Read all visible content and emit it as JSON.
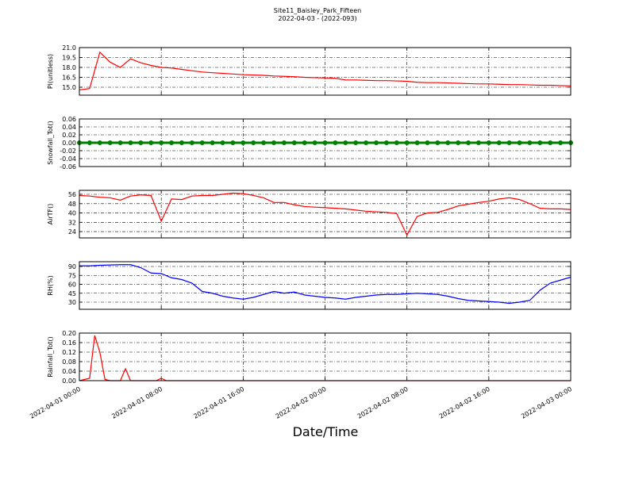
{
  "title": "Site11_Baisley_Park_Fifteen",
  "subtitle": "2022-04-03 - (2022-093)",
  "xlabel": "Date/Time",
  "xlim": [
    "2022-04-01 00:00",
    "2022-04-03 00:00"
  ],
  "xticks": [
    "2022-04-01 00:00",
    "2022-04-01 08:00",
    "2022-04-01 16:00",
    "2022-04-02 00:00",
    "2022-04-02 08:00",
    "2022-04-02 16:00",
    "2022-04-03 00:00"
  ],
  "grid": true,
  "chart_data": [
    {
      "type": "line",
      "ylabel": "Pl(unitless)",
      "ylim": [
        13.8,
        21
      ],
      "yticks": [
        {
          "value": 15,
          "label": "15.0"
        },
        {
          "value": 16.5,
          "label": "16.5"
        },
        {
          "value": 18,
          "label": "18.0"
        },
        {
          "value": 19.5,
          "label": "19.5"
        },
        {
          "value": 21,
          "label": "21.0"
        }
      ],
      "x": [
        "2022-04-01 00:00",
        "2022-04-01 01:00",
        "2022-04-01 02:00",
        "2022-04-01 03:00",
        "2022-04-01 04:00",
        "2022-04-01 05:00",
        "2022-04-01 06:00",
        "2022-04-01 07:00",
        "2022-04-01 08:00",
        "2022-04-01 09:00",
        "2022-04-01 10:00",
        "2022-04-01 11:00",
        "2022-04-01 12:00",
        "2022-04-01 13:00",
        "2022-04-01 14:00",
        "2022-04-01 15:00",
        "2022-04-01 16:00",
        "2022-04-01 17:00",
        "2022-04-01 18:00",
        "2022-04-01 19:00",
        "2022-04-01 20:00",
        "2022-04-01 21:00",
        "2022-04-01 22:00",
        "2022-04-01 23:00",
        "2022-04-02 00:00",
        "2022-04-02 01:00",
        "2022-04-02 02:00",
        "2022-04-02 03:00",
        "2022-04-02 04:00",
        "2022-04-02 05:00",
        "2022-04-02 06:00",
        "2022-04-02 07:00",
        "2022-04-02 08:00",
        "2022-04-02 09:00",
        "2022-04-02 10:00",
        "2022-04-02 11:00",
        "2022-04-02 12:00",
        "2022-04-02 13:00",
        "2022-04-02 14:00",
        "2022-04-02 15:00",
        "2022-04-02 16:00",
        "2022-04-02 17:00",
        "2022-04-02 18:00",
        "2022-04-02 19:00",
        "2022-04-02 20:00",
        "2022-04-02 21:00",
        "2022-04-02 22:00",
        "2022-04-02 23:00",
        "2022-04-03 00:00"
      ],
      "series": [
        {
          "color": "#ff0000",
          "marker": false,
          "values": [
            14.6,
            14.8,
            20.3,
            18.8,
            18.0,
            19.3,
            18.7,
            18.3,
            18.0,
            17.9,
            17.7,
            17.5,
            17.3,
            17.2,
            17.1,
            17.0,
            16.9,
            16.85,
            16.8,
            16.7,
            16.65,
            16.6,
            16.5,
            16.45,
            16.4,
            16.35,
            16.1,
            16.1,
            16.05,
            16.0,
            16.0,
            15.95,
            15.9,
            15.75,
            15.7,
            15.7,
            15.65,
            15.6,
            15.55,
            15.5,
            15.5,
            15.45,
            15.4,
            15.4,
            15.35,
            15.3,
            15.3,
            15.25,
            15.2
          ]
        }
      ]
    },
    {
      "type": "line",
      "ylabel": "Snowfall_Tot()",
      "ylim": [
        -0.06,
        0.06
      ],
      "yticks": [
        -0.06,
        -0.04,
        -0.02,
        {
          "value": 0,
          "label": "0.00"
        },
        0.02,
        0.04,
        0.06
      ],
      "x": [
        "2022-04-01 00:00",
        "2022-04-01 01:00",
        "2022-04-01 02:00",
        "2022-04-01 03:00",
        "2022-04-01 04:00",
        "2022-04-01 05:00",
        "2022-04-01 06:00",
        "2022-04-01 07:00",
        "2022-04-01 08:00",
        "2022-04-01 09:00",
        "2022-04-01 10:00",
        "2022-04-01 11:00",
        "2022-04-01 12:00",
        "2022-04-01 13:00",
        "2022-04-01 14:00",
        "2022-04-01 15:00",
        "2022-04-01 16:00",
        "2022-04-01 17:00",
        "2022-04-01 18:00",
        "2022-04-01 19:00",
        "2022-04-01 20:00",
        "2022-04-01 21:00",
        "2022-04-01 22:00",
        "2022-04-01 23:00",
        "2022-04-02 00:00",
        "2022-04-02 01:00",
        "2022-04-02 02:00",
        "2022-04-02 03:00",
        "2022-04-02 04:00",
        "2022-04-02 05:00",
        "2022-04-02 06:00",
        "2022-04-02 07:00",
        "2022-04-02 08:00",
        "2022-04-02 09:00",
        "2022-04-02 10:00",
        "2022-04-02 11:00",
        "2022-04-02 12:00",
        "2022-04-02 13:00",
        "2022-04-02 14:00",
        "2022-04-02 15:00",
        "2022-04-02 16:00",
        "2022-04-02 17:00",
        "2022-04-02 18:00",
        "2022-04-02 19:00",
        "2022-04-02 20:00",
        "2022-04-02 21:00",
        "2022-04-02 22:00",
        "2022-04-02 23:00",
        "2022-04-03 00:00"
      ],
      "series": [
        {
          "color": "#008000",
          "marker": true,
          "values": [
            0,
            0,
            0,
            0,
            0,
            0,
            0,
            0,
            0,
            0,
            0,
            0,
            0,
            0,
            0,
            0,
            0,
            0,
            0,
            0,
            0,
            0,
            0,
            0,
            0,
            0,
            0,
            0,
            0,
            0,
            0,
            0,
            0,
            0,
            0,
            0,
            0,
            0,
            0,
            0,
            0,
            0,
            0,
            0,
            0,
            0,
            0,
            0,
            0
          ]
        }
      ]
    },
    {
      "type": "line",
      "ylabel": "AirTF()",
      "ylim": [
        18.6,
        59.4
      ],
      "yticks": [
        24,
        32,
        40,
        48,
        56
      ],
      "x": [
        "2022-04-01 00:00",
        "2022-04-01 01:00",
        "2022-04-01 02:00",
        "2022-04-01 03:00",
        "2022-04-01 04:00",
        "2022-04-01 05:00",
        "2022-04-01 06:00",
        "2022-04-01 07:00",
        "2022-04-01 08:00",
        "2022-04-01 09:00",
        "2022-04-01 10:00",
        "2022-04-01 11:00",
        "2022-04-01 12:00",
        "2022-04-01 13:00",
        "2022-04-01 14:00",
        "2022-04-01 15:00",
        "2022-04-01 16:00",
        "2022-04-01 17:00",
        "2022-04-01 18:00",
        "2022-04-01 19:00",
        "2022-04-01 20:00",
        "2022-04-01 21:00",
        "2022-04-01 22:00",
        "2022-04-01 23:00",
        "2022-04-02 00:00",
        "2022-04-02 01:00",
        "2022-04-02 02:00",
        "2022-04-02 03:00",
        "2022-04-02 04:00",
        "2022-04-02 05:00",
        "2022-04-02 06:00",
        "2022-04-02 07:00",
        "2022-04-02 08:00",
        "2022-04-02 09:00",
        "2022-04-02 10:00",
        "2022-04-02 11:00",
        "2022-04-02 12:00",
        "2022-04-02 13:00",
        "2022-04-02 14:00",
        "2022-04-02 15:00",
        "2022-04-02 16:00",
        "2022-04-02 17:00",
        "2022-04-02 18:00",
        "2022-04-02 19:00",
        "2022-04-02 20:00",
        "2022-04-02 21:00",
        "2022-04-02 22:00",
        "2022-04-02 23:00",
        "2022-04-03 00:00"
      ],
      "series": [
        {
          "color": "#ff0000",
          "marker": false,
          "values": [
            55,
            54.5,
            53.5,
            53,
            51,
            54.5,
            55.5,
            55,
            33,
            52,
            51.5,
            54.5,
            55,
            55,
            56,
            57,
            56.5,
            55,
            53,
            49,
            49,
            47,
            45.5,
            45,
            44.5,
            44,
            43.5,
            42.5,
            41.5,
            41,
            40.5,
            39.5,
            21,
            37,
            40,
            40.5,
            43,
            46,
            47.5,
            49,
            50,
            52,
            53,
            51.5,
            48,
            44,
            43.5,
            43.5,
            43
          ]
        }
      ]
    },
    {
      "type": "line",
      "ylabel": "RH(%)",
      "ylim": [
        18,
        98
      ],
      "yticks": [
        30,
        45,
        60,
        75,
        90
      ],
      "x": [
        "2022-04-01 00:00",
        "2022-04-01 01:00",
        "2022-04-01 02:00",
        "2022-04-01 03:00",
        "2022-04-01 04:00",
        "2022-04-01 05:00",
        "2022-04-01 06:00",
        "2022-04-01 07:00",
        "2022-04-01 08:00",
        "2022-04-01 09:00",
        "2022-04-01 10:00",
        "2022-04-01 11:00",
        "2022-04-01 12:00",
        "2022-04-01 13:00",
        "2022-04-01 14:00",
        "2022-04-01 15:00",
        "2022-04-01 16:00",
        "2022-04-01 17:00",
        "2022-04-01 18:00",
        "2022-04-01 19:00",
        "2022-04-01 20:00",
        "2022-04-01 21:00",
        "2022-04-01 22:00",
        "2022-04-01 23:00",
        "2022-04-02 00:00",
        "2022-04-02 01:00",
        "2022-04-02 02:00",
        "2022-04-02 03:00",
        "2022-04-02 04:00",
        "2022-04-02 05:00",
        "2022-04-02 06:00",
        "2022-04-02 07:00",
        "2022-04-02 08:00",
        "2022-04-02 09:00",
        "2022-04-02 10:00",
        "2022-04-02 11:00",
        "2022-04-02 12:00",
        "2022-04-02 13:00",
        "2022-04-02 14:00",
        "2022-04-02 15:00",
        "2022-04-02 16:00",
        "2022-04-02 17:00",
        "2022-04-02 18:00",
        "2022-04-02 19:00",
        "2022-04-02 20:00",
        "2022-04-02 21:00",
        "2022-04-02 22:00",
        "2022-04-02 23:00",
        "2022-04-03 00:00"
      ],
      "series": [
        {
          "color": "#0000ff",
          "marker": false,
          "values": [
            91,
            91,
            92,
            92.5,
            93,
            93,
            88,
            79,
            78,
            71,
            68,
            62,
            48,
            45,
            40,
            37,
            35,
            38,
            43,
            48,
            45,
            47,
            42,
            40,
            38,
            37,
            35,
            38,
            40,
            42,
            43,
            43,
            44,
            45,
            44,
            43,
            40,
            36,
            33,
            32,
            31,
            30,
            28,
            30,
            33,
            50,
            62,
            67,
            72
          ]
        }
      ]
    },
    {
      "type": "line",
      "ylabel": "Rainfall_Tot()",
      "ylim": [
        0,
        0.2
      ],
      "yticks": [
        {
          "value": 0,
          "label": "0.00"
        },
        0.04,
        0.08,
        0.12,
        0.16,
        {
          "value": 0.2,
          "label": "0.20"
        }
      ],
      "x": [
        "2022-04-01 00:00",
        "2022-04-01 01:00",
        "2022-04-01 01:30",
        "2022-04-01 02:00",
        "2022-04-01 02:30",
        "2022-04-01 03:00",
        "2022-04-01 04:00",
        "2022-04-01 04:30",
        "2022-04-01 05:00",
        "2022-04-01 07:30",
        "2022-04-01 08:00",
        "2022-04-01 08:30",
        "2022-04-02 00:00",
        "2022-04-03 00:00"
      ],
      "series": [
        {
          "color": "#ff0000",
          "marker": false,
          "values": [
            0,
            0.01,
            0.19,
            0.12,
            0.005,
            0,
            0,
            0.05,
            0,
            0,
            0.01,
            0,
            0,
            0
          ]
        }
      ]
    }
  ]
}
